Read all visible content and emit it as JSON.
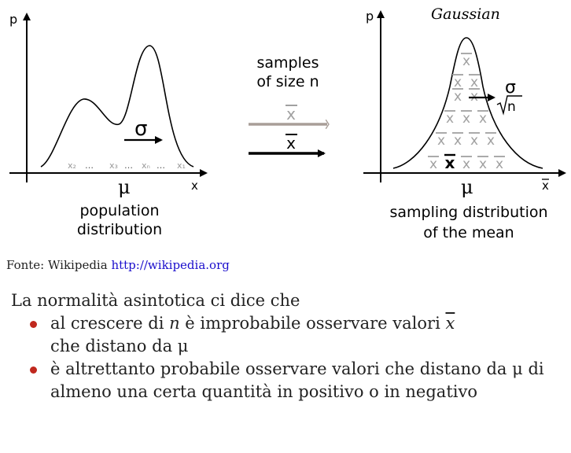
{
  "figure": {
    "left_panel": {
      "y_axis_label": "p",
      "x_axis_label": "x",
      "sigma_label": "σ",
      "mu_label": "μ",
      "samples": [
        "x₂",
        "…",
        "x₃",
        "…",
        "xₙ",
        "…",
        "x₁"
      ],
      "caption_line1": "population",
      "caption_line2": "distribution"
    },
    "middle": {
      "label_line1": "samples",
      "label_line2": "of size n",
      "xbar_gray": "x",
      "xbar_black": "x"
    },
    "right_panel": {
      "title": "Gaussian",
      "y_axis_label": "p",
      "x_axis_label": "x",
      "sigma_label": "σ",
      "sqrt_n_label": "n",
      "mu_label": "μ",
      "xbar_symbol": "x",
      "caption_line1": "sampling distribution",
      "caption_line2": "of the mean"
    }
  },
  "source": {
    "prefix": "Fonte: Wikipedia",
    "url": "http://wikipedia.org"
  },
  "text": {
    "intro": "La normalità asintotica ci dice che",
    "bullet1_part1": "al crescere di ",
    "bullet1_n": "n",
    "bullet1_part2": " è improbabile osservare valori ",
    "bullet1_xbar": "x",
    "bullet1_part3": "che distano da μ",
    "bullet2": "è altrettanto probabile osservare valori che distano da μ di almeno una certa quantità in positivo o in negativo"
  },
  "colors": {
    "bullet": "#c0281e",
    "link": "#1a0dcc",
    "gray_symbol": "#a0a0a0",
    "gray_arrow": "#a89e98"
  }
}
